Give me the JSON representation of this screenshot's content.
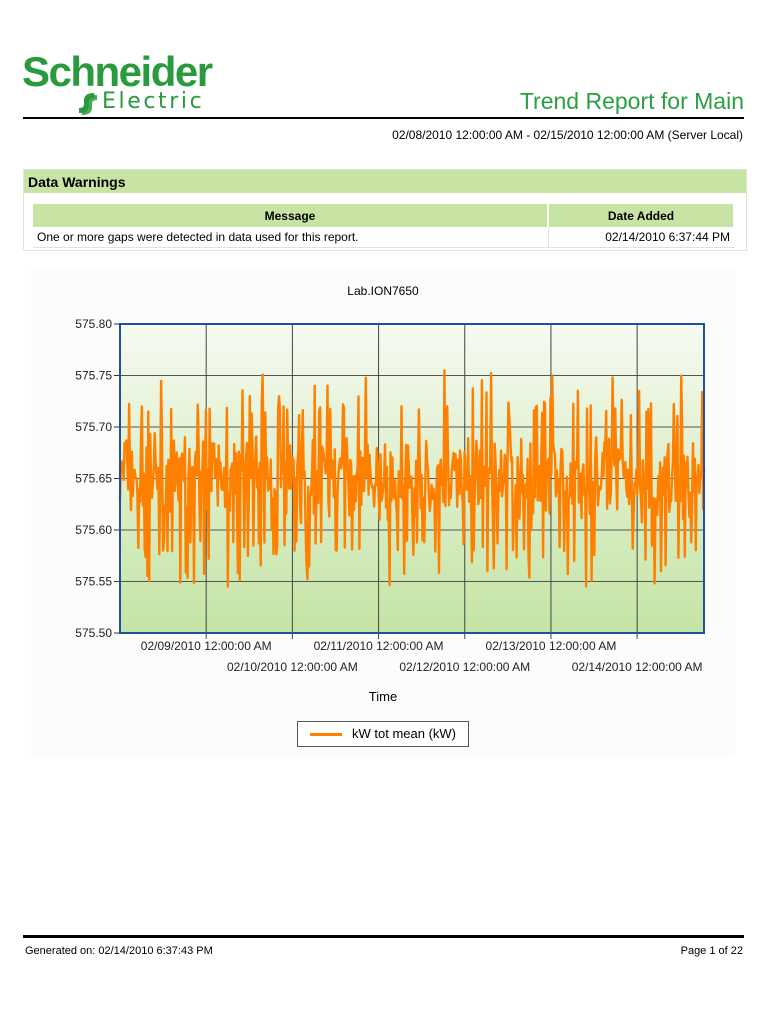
{
  "header": {
    "logo_brand": "Schneider",
    "logo_sub": "Electric",
    "report_title": "Trend Report for Main",
    "date_range": "02/08/2010 12:00:00 AM - 02/15/2010 12:00:00 AM (Server Local)"
  },
  "warnings": {
    "section_title": "Data Warnings",
    "columns": [
      "Message",
      "Date Added"
    ],
    "rows": [
      {
        "message": "One or more gaps were detected in data used for this report.",
        "date_added": "02/14/2010 6:37:44 PM"
      }
    ]
  },
  "footer": {
    "generated": "Generated on: 02/14/2010 6:37:43 PM",
    "page": "Page 1 of 22"
  },
  "colors": {
    "brand_green": "#2a9a3e",
    "header_green": "#c7e4a5",
    "series_orange": "#ff8000",
    "plot_border": "#1f4fa0",
    "plot_bg_top": "#f6faf1",
    "plot_bg_bottom": "#c4e4a4"
  },
  "chart_data": {
    "type": "line",
    "title": "Lab.ION7650",
    "xlabel": "Time",
    "ylabel": "",
    "ylim": [
      575.5,
      575.8
    ],
    "y_ticks": [
      "575.80",
      "575.75",
      "575.70",
      "575.65",
      "575.60",
      "575.55",
      "575.50"
    ],
    "x_range": [
      "02/08/2010 12:00:00 AM",
      "02/14/2010 6:37:00 PM"
    ],
    "x_ticks": [
      "02/09/2010 12:00:00 AM",
      "02/10/2010 12:00:00 AM",
      "02/11/2010 12:00:00 AM",
      "02/12/2010 12:00:00 AM",
      "02/13/2010 12:00:00 AM",
      "02/14/2010 12:00:00 AM"
    ],
    "grid": true,
    "legend_position": "bottom",
    "series": [
      {
        "name": "kW tot mean (kW)",
        "mean": 575.65,
        "min": 575.545,
        "max": 575.755,
        "typical_band": [
          575.59,
          575.71
        ],
        "samples": [
          {
            "x": "02/08/2010 00:00",
            "y": 575.63
          },
          {
            "x": "02/08/2010 06:00",
            "y": 575.72
          },
          {
            "x": "02/08/2010 12:00",
            "y": 575.58
          },
          {
            "x": "02/08/2010 18:00",
            "y": 575.69
          },
          {
            "x": "02/09/2010 00:00",
            "y": 575.62
          },
          {
            "x": "02/09/2010 06:00",
            "y": 575.545
          },
          {
            "x": "02/09/2010 12:00",
            "y": 575.73
          },
          {
            "x": "02/09/2010 18:00",
            "y": 575.6
          },
          {
            "x": "02/10/2010 00:00",
            "y": 575.67
          },
          {
            "x": "02/10/2010 06:00",
            "y": 575.74
          },
          {
            "x": "02/10/2010 12:00",
            "y": 575.58
          },
          {
            "x": "02/10/2010 18:00",
            "y": 575.66
          },
          {
            "x": "02/11/2010 00:00",
            "y": 575.61
          },
          {
            "x": "02/11/2010 06:00",
            "y": 575.72
          },
          {
            "x": "02/11/2010 12:00",
            "y": 575.59
          },
          {
            "x": "02/11/2010 18:00",
            "y": 575.755
          },
          {
            "x": "02/12/2010 00:00",
            "y": 575.64
          },
          {
            "x": "02/12/2010 06:00",
            "y": 575.56
          },
          {
            "x": "02/12/2010 12:00",
            "y": 575.71
          },
          {
            "x": "02/12/2010 18:00",
            "y": 575.6
          },
          {
            "x": "02/13/2010 00:00",
            "y": 575.75
          },
          {
            "x": "02/13/2010 06:00",
            "y": 575.57
          },
          {
            "x": "02/13/2010 12:00",
            "y": 575.69
          },
          {
            "x": "02/13/2010 18:00",
            "y": 575.62
          },
          {
            "x": "02/14/2010 00:00",
            "y": 575.735
          },
          {
            "x": "02/14/2010 06:00",
            "y": 575.56
          },
          {
            "x": "02/14/2010 12:00",
            "y": 575.7
          },
          {
            "x": "02/14/2010 18:37",
            "y": 575.66
          }
        ]
      }
    ]
  }
}
